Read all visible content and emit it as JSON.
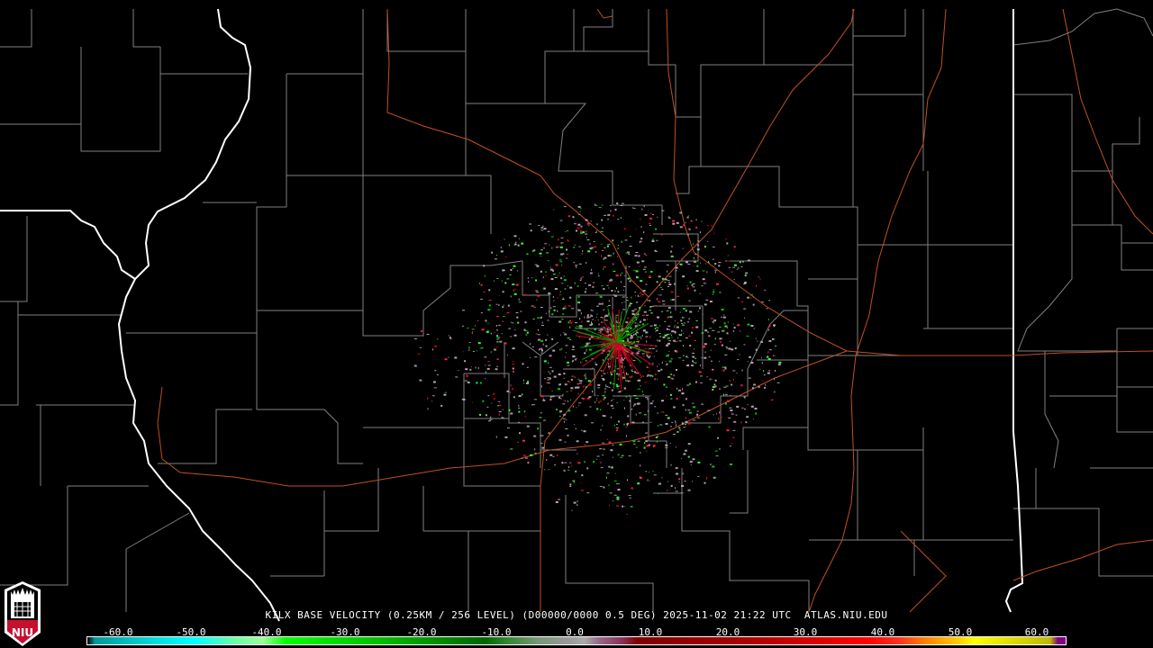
{
  "product": {
    "title": "KILX BASE VELOCITY (0.25KM / 256 LEVEL) (D00000/0000 0.5 DEG) 2025-11-02 21:22 UTC  ATLAS.NIU.EDU",
    "radar_site": "KILX",
    "elevation": "0.5 DEG",
    "datetime": "2025-11-02 21:22 UTC",
    "source": "ATLAS.NIU.EDU"
  },
  "logo": {
    "text": "NIU",
    "colors": {
      "red": "#c8102e",
      "white": "#ffffff",
      "black": "#000000"
    }
  },
  "colorbar": {
    "ticks": [
      "-60.0",
      "-50.0",
      "-40.0",
      "-30.0",
      "-20.0",
      "-10.0",
      "0.0",
      "10.0",
      "20.0",
      "30.0",
      "40.0",
      "50.0",
      "60.0"
    ],
    "range": [
      -64,
      64
    ],
    "stops": [
      {
        "v": -64,
        "c": "#000000"
      },
      {
        "v": -63,
        "c": "#009999"
      },
      {
        "v": -55,
        "c": "#00dddd"
      },
      {
        "v": -50,
        "c": "#00ffff"
      },
      {
        "v": -45,
        "c": "#66ffaa"
      },
      {
        "v": -41,
        "c": "#99ff99"
      },
      {
        "v": -38,
        "c": "#00ff00"
      },
      {
        "v": -25,
        "c": "#00bb00"
      },
      {
        "v": -12,
        "c": "#006600"
      },
      {
        "v": -9,
        "c": "#338833"
      },
      {
        "v": -5,
        "c": "#779977"
      },
      {
        "v": -1,
        "c": "#999999"
      },
      {
        "v": 1,
        "c": "#aaaaaa"
      },
      {
        "v": 3,
        "c": "#996688"
      },
      {
        "v": 6,
        "c": "#883355"
      },
      {
        "v": 8,
        "c": "#800000"
      },
      {
        "v": 22,
        "c": "#aa0000"
      },
      {
        "v": 38,
        "c": "#ff0000"
      },
      {
        "v": 42,
        "c": "#ff3020"
      },
      {
        "v": 46,
        "c": "#ff8800"
      },
      {
        "v": 50,
        "c": "#ffcc00"
      },
      {
        "v": 52,
        "c": "#ffff00"
      },
      {
        "v": 62,
        "c": "#c0b800"
      },
      {
        "v": 63,
        "c": "#800080"
      }
    ]
  },
  "map": {
    "background": "#000000",
    "county_color": "#808080",
    "state_color": "#ffffff",
    "road_color": "#c05020",
    "echo_colors": [
      "#aa8899",
      "#b0a0a8",
      "#cc99bb",
      "#999999",
      "#00cc00",
      "#33ff33",
      "#cc0000",
      "#ff2040",
      "#aaaaaa"
    ]
  }
}
